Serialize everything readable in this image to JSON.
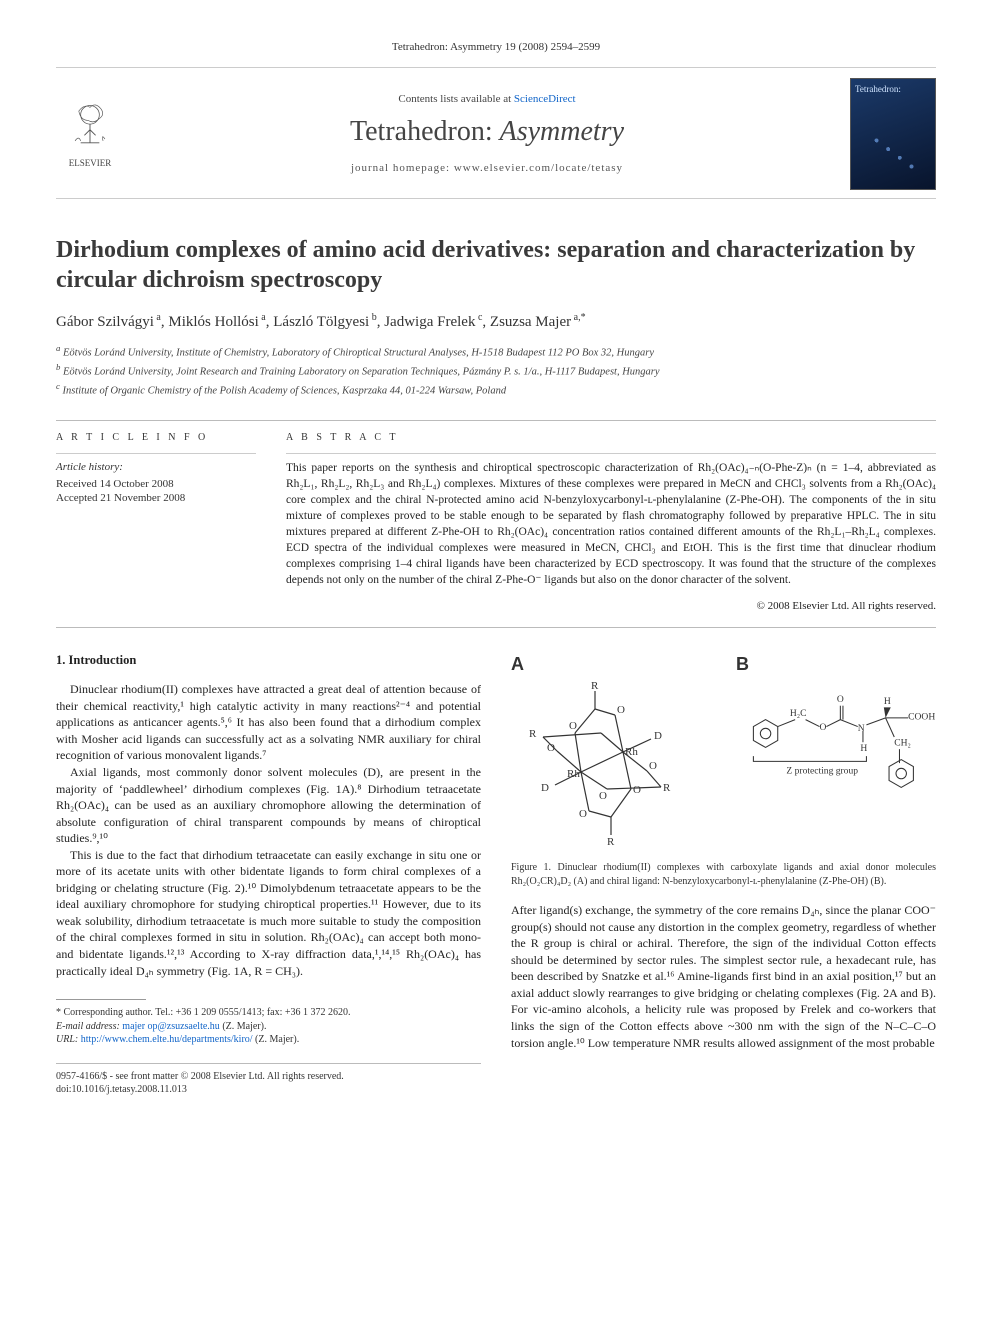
{
  "top_citation": "Tetrahedron: Asymmetry 19 (2008) 2594–2599",
  "masthead": {
    "contents_line_prefix": "Contents lists available at ",
    "contents_link": "ScienceDirect",
    "journal_name_plain": "Tetrahedron: ",
    "journal_name_italic": "Asymmetry",
    "homepage_line": "journal homepage: www.elsevier.com/locate/tetasy",
    "publisher_word": "ELSEVIER",
    "thumb_text": "Tetrahedron:"
  },
  "title": "Dirhodium complexes of amino acid derivatives: separation and characterization by circular dichroism spectroscopy",
  "authors_html": "Gábor Szilvágyi<sup> a</sup>, Miklós Hollósi<sup> a</sup>, László Tölgyesi<sup> b</sup>, Jadwiga Frelek<sup> c</sup>, Zsuzsa Majer<sup> a,*</sup>",
  "affiliations": [
    "a Eötvös Loránd University, Institute of Chemistry, Laboratory of Chiroptical Structural Analyses, H-1518 Budapest 112 PO Box 32, Hungary",
    "b Eötvös Loránd University, Joint Research and Training Laboratory on Separation Techniques, Pázmány P. s. 1/a., H-1117 Budapest, Hungary",
    "c Institute of Organic Chemistry of the Polish Academy of Sciences, Kasprzaka 44, 01-224 Warsaw, Poland"
  ],
  "article_info": {
    "heading": "A R T I C L E   I N F O",
    "history_heading": "Article history:",
    "received": "Received 14 October 2008",
    "accepted": "Accepted 21 November 2008"
  },
  "abstract": {
    "heading": "A B S T R A C T",
    "text": "This paper reports on the synthesis and chiroptical spectroscopic characterization of Rh₂(OAc)₄₋ₙ(O-Phe-Z)ₙ (n = 1–4, abbreviated as Rh₂L₁, Rh₂L₂, Rh₂L₃ and Rh₂L₄) complexes. Mixtures of these complexes were prepared in MeCN and CHCl₃ solvents from a Rh₂(OAc)₄ core complex and the chiral N-protected amino acid N-benzyloxycarbonyl-ʟ-phenylalanine (Z-Phe-OH). The components of the in situ mixture of complexes proved to be stable enough to be separated by flash chromatography followed by preparative HPLC. The in situ mixtures prepared at different Z-Phe-OH to Rh₂(OAc)₄ concentration ratios contained different amounts of the Rh₂L₁–Rh₂L₄ complexes. ECD spectra of the individual complexes were measured in MeCN, CHCl₃ and EtOH. This is the first time that dinuclear rhodium complexes comprising 1–4 chiral ligands have been characterized by ECD spectroscopy. It was found that the structure of the complexes depends not only on the number of the chiral Z-Phe-O⁻ ligands but also on the donor character of the solvent.",
    "copyright": "© 2008 Elsevier Ltd. All rights reserved."
  },
  "section1": {
    "heading": "1. Introduction",
    "p1": "Dinuclear rhodium(II) complexes have attracted a great deal of attention because of their chemical reactivity,¹ high catalytic activity in many reactions²⁻⁴ and potential applications as anticancer agents.⁵,⁶ It has also been found that a dirhodium complex with Mosher acid ligands can successfully act as a solvating NMR auxiliary for chiral recognition of various monovalent ligands.⁷",
    "p2": "Axial ligands, most commonly donor solvent molecules (D), are present in the majority of ‘paddlewheel’ dirhodium complexes (Fig. 1A).⁸ Dirhodium tetraacetate Rh₂(OAc)₄ can be used as an auxiliary chromophore allowing the determination of absolute configuration of chiral transparent compounds by means of chiroptical studies.⁹,¹⁰",
    "p3": "This is due to the fact that dirhodium tetraacetate can easily exchange in situ one or more of its acetate units with other bidentate ligands to form chiral complexes of a bridging or chelating structure (Fig. 2).¹⁰ Dimolybdenum tetraacetate appears to be the ideal auxiliary chromophore for studying chiroptical properties.¹¹ However, due to its weak solubility, dirhodium tetraacetate is much more suitable to study the composition of the chiral complexes formed in situ in solution. Rh₂(OAc)₄ can accept both mono- and bidentate ligands.¹²,¹³ According to X-ray diffraction data,¹,¹⁴,¹⁵ Rh₂(OAc)₄ has practically ideal D₄ₕ symmetry (Fig. 1A, R = CH₃)."
  },
  "figure1": {
    "panel_a_label": "A",
    "panel_b_label": "B",
    "caption": "Figure 1. Dinuclear rhodium(II) complexes with carboxylate ligands and axial donor molecules Rh₂(O₂CR)₄D₂ (A) and chiral ligand: N-benzyloxycarbonyl-ʟ-phenylalanine (Z-Phe-OH) (B).",
    "panel_a": {
      "labels": {
        "R": "R",
        "O": "O",
        "D": "D",
        "Rh": "Rh"
      },
      "line_color": "#333333",
      "atom_font_size": 11
    },
    "panel_b": {
      "labels": {
        "H2C": "H₂C",
        "O": "O",
        "N": "N",
        "H": "H",
        "COOH": "COOH",
        "CH2": "CH₂",
        "Z": "Z protecting group"
      },
      "line_color": "#333333"
    }
  },
  "right_col_para": "After ligand(s) exchange, the symmetry of the core remains D₄ₕ, since the planar COO⁻ group(s) should not cause any distortion in the complex geometry, regardless of whether the R group is chiral or achiral. Therefore, the sign of the individual Cotton effects should be determined by sector rules. The simplest sector rule, a hexadecant rule, has been described by Snatzke et al.¹⁶ Amine-ligands first bind in an axial position,¹⁷ but an axial adduct slowly rearranges to give bridging or chelating complexes (Fig. 2A and B). For vic-amino alcohols, a helicity rule was proposed by Frelek and co-workers that links the sign of the Cotton effects above ~300 nm with the sign of the N–C–C–O torsion angle.¹⁰ Low temperature NMR results allowed assignment of the most probable",
  "footnote": {
    "star_line": "* Corresponding author. Tel.: +36 1 209 0555/1413; fax: +36 1 372 2620.",
    "email_label": "E-mail address: ",
    "email": "majer op@zsuzsaelte.hu",
    "email_who": " (Z. Majer).",
    "url_label": "URL: ",
    "url": "http://www.chem.elte.hu/departments/kiro/",
    "url_who": " (Z. Majer)."
  },
  "bottom": {
    "issn_line": "0957-4166/$ - see front matter © 2008 Elsevier Ltd. All rights reserved.",
    "doi_line": "doi:10.1016/j.tetasy.2008.11.013"
  },
  "colors": {
    "link": "#1064c8",
    "text": "#222222",
    "rule": "#bbbbbb"
  }
}
